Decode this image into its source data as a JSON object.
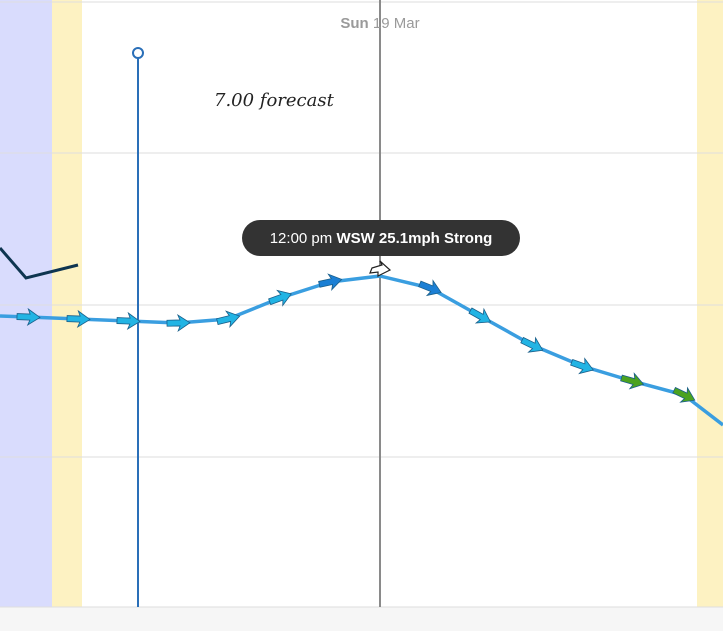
{
  "header": {
    "day": "Sun",
    "date": "19 Mar"
  },
  "annotation": "7.00 forecast",
  "tooltip": {
    "time": "12:00 pm",
    "detail": "WSW 25.1mph Strong"
  }
}
